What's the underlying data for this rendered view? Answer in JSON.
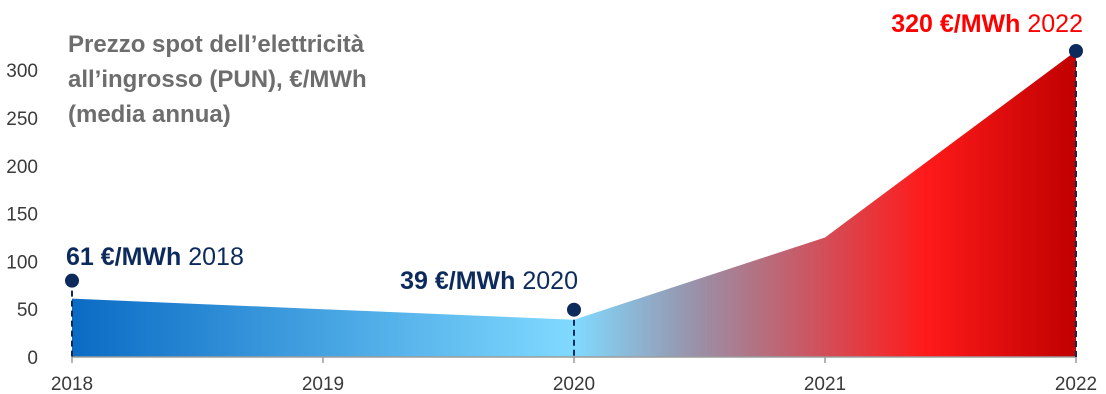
{
  "chart_data": {
    "type": "area",
    "title_lines": [
      "Prezzo spot dell’elettricità",
      "all’ingrosso (PUN), €/MWh",
      "(media annua)"
    ],
    "x": [
      "2018",
      "2019",
      "2020",
      "2021",
      "2022"
    ],
    "values": [
      61,
      50,
      39,
      125,
      320
    ],
    "ylim": [
      0,
      320
    ],
    "yticks": [
      "0",
      "50",
      "100",
      "150",
      "200",
      "250",
      "300"
    ],
    "colors": {
      "blue_dark": "#0a6bc4",
      "blue_light": "#80daff",
      "gray_mid": "#9a8fa6",
      "red": "#ff1a1a",
      "red_dark": "#c00000",
      "marker": "#0d2a5c",
      "ann_dark": "#0d2a5c",
      "ann_red": "#ff0000"
    },
    "annotations": [
      {
        "index": 0,
        "value_text": "61 €/MWh",
        "year_text": "2018",
        "color": "dark"
      },
      {
        "index": 2,
        "value_text": "39 €/MWh",
        "year_text": "2020",
        "color": "dark"
      },
      {
        "index": 4,
        "value_text": "320 €/MWh",
        "year_text": "2022",
        "color": "red"
      }
    ]
  }
}
